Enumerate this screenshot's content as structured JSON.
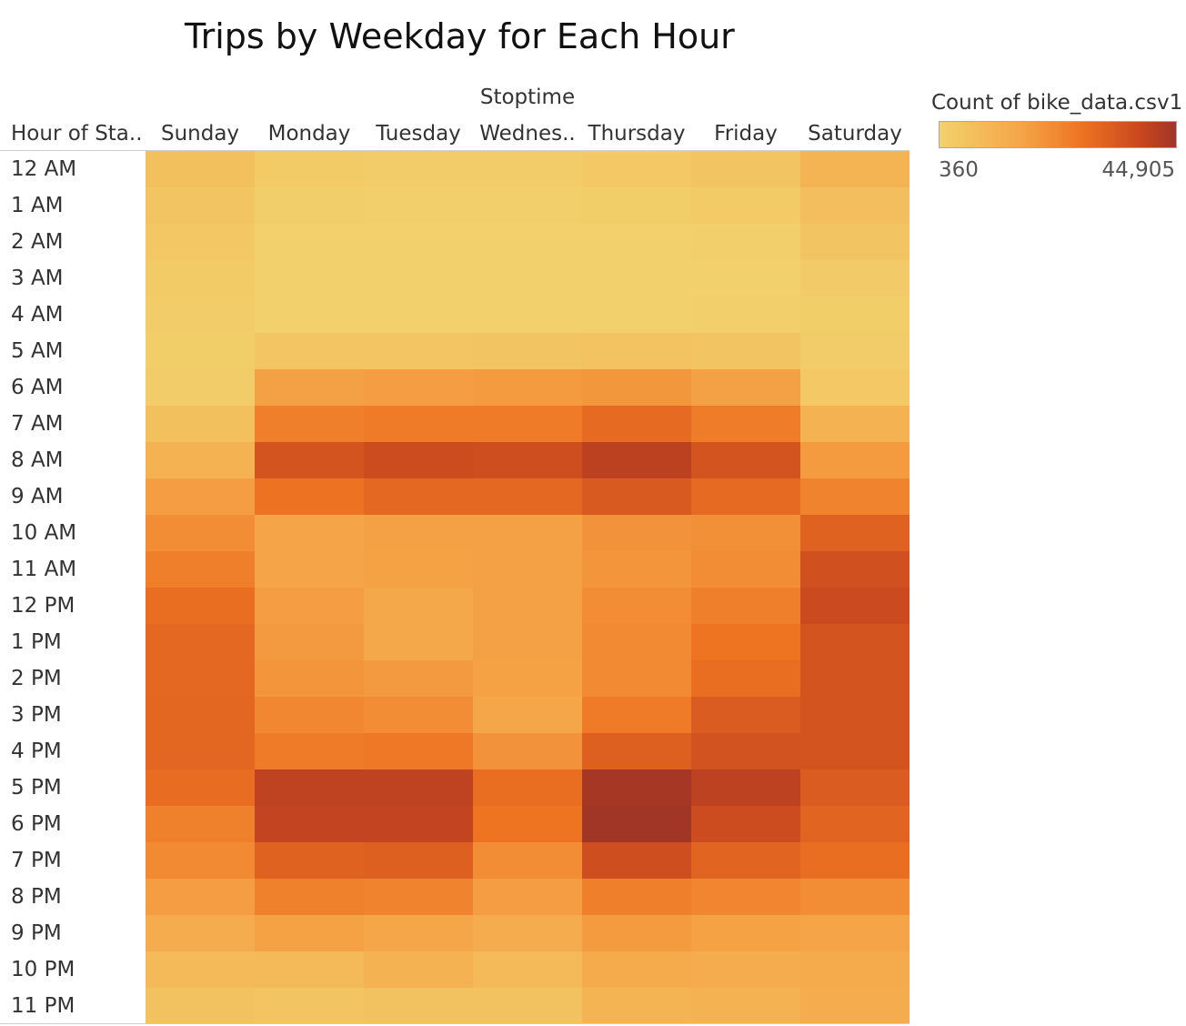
{
  "chart_data": {
    "type": "heatmap",
    "title": "Trips by Weekday for Each Hour",
    "column_field": "Stoptime",
    "row_field": "Hour of Sta..",
    "columns": [
      "Sunday",
      "Monday",
      "Tuesday",
      "Wednes..",
      "Thursday",
      "Friday",
      "Saturday"
    ],
    "rows": [
      "12 AM",
      "1 AM",
      "2 AM",
      "3 AM",
      "4 AM",
      "5 AM",
      "6 AM",
      "7 AM",
      "8 AM",
      "9 AM",
      "10 AM",
      "11 AM",
      "12 PM",
      "1 PM",
      "2 PM",
      "3 PM",
      "4 PM",
      "5 PM",
      "6 PM",
      "7 PM",
      "8 PM",
      "9 PM",
      "10 PM",
      "11 PM"
    ],
    "values": [
      [
        4500,
        1800,
        1500,
        1600,
        2500,
        3500,
        7500
      ],
      [
        3500,
        1000,
        800,
        800,
        1200,
        1800,
        5000
      ],
      [
        2800,
        600,
        500,
        500,
        600,
        900,
        3500
      ],
      [
        1800,
        400,
        360,
        360,
        400,
        500,
        2000
      ],
      [
        1500,
        700,
        700,
        700,
        700,
        800,
        1200
      ],
      [
        1200,
        3000,
        3200,
        3400,
        3800,
        3500,
        1500
      ],
      [
        1500,
        12500,
        13000,
        13500,
        14500,
        12500,
        2500
      ],
      [
        4500,
        20000,
        21000,
        21000,
        25000,
        20500,
        8000
      ],
      [
        8000,
        30500,
        32500,
        32000,
        37500,
        30500,
        13500
      ],
      [
        13000,
        23000,
        25500,
        25500,
        29000,
        25000,
        19000
      ],
      [
        17000,
        11500,
        12500,
        12500,
        15500,
        16000,
        27000
      ],
      [
        20000,
        11500,
        12000,
        12500,
        15000,
        17000,
        31500
      ],
      [
        24000,
        13000,
        10500,
        12500,
        17000,
        20000,
        33000
      ],
      [
        25500,
        14000,
        10500,
        12500,
        17500,
        22500,
        30500
      ],
      [
        25500,
        15000,
        14000,
        12000,
        17500,
        24000,
        30500
      ],
      [
        26000,
        18000,
        17000,
        11000,
        21000,
        28500,
        30500
      ],
      [
        26000,
        21000,
        21500,
        15500,
        27500,
        31000,
        30500
      ],
      [
        24500,
        36500,
        36500,
        24000,
        43500,
        37000,
        28500
      ],
      [
        19500,
        35500,
        35500,
        22500,
        44905,
        32500,
        26500
      ],
      [
        17500,
        27000,
        27500,
        17000,
        32000,
        26500,
        24000
      ],
      [
        13000,
        19500,
        19000,
        13000,
        20000,
        18500,
        17000
      ],
      [
        9500,
        12000,
        11000,
        9500,
        13500,
        12000,
        11500
      ],
      [
        6000,
        6000,
        8000,
        6000,
        10000,
        9500,
        10000
      ],
      [
        4000,
        3500,
        4000,
        4000,
        7500,
        8000,
        9500
      ]
    ],
    "color_legend": {
      "title": "Count of bike_data.csv1",
      "min": 360,
      "max": 44905,
      "min_label": "360",
      "max_label": "44,905",
      "colors": [
        "#f2d16c",
        "#f5a447",
        "#ee7322",
        "#c9471f",
        "#a13526"
      ]
    }
  }
}
